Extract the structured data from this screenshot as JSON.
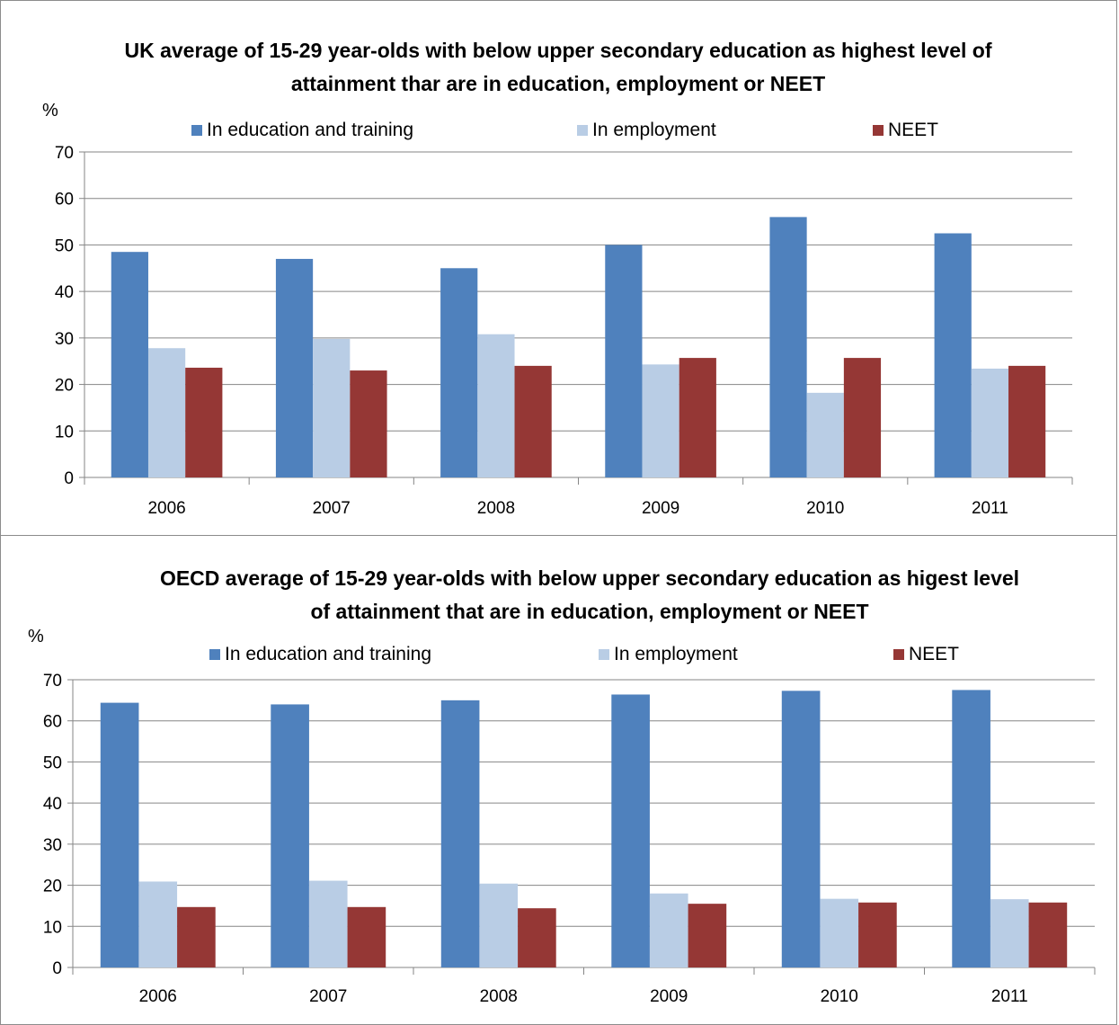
{
  "colors": {
    "education": "#4f81bd",
    "employment": "#b9cde5",
    "neet": "#953735",
    "grid": "#868686"
  },
  "chart_data": [
    {
      "type": "bar",
      "title_lines": [
        "UK average of 15-29 year-olds with below upper secondary education as highest level of",
        "attainment thar are in education, employment or NEET"
      ],
      "ylabel": "%",
      "xlabel": "",
      "ylim": [
        0,
        70
      ],
      "yticks": [
        0,
        10,
        20,
        30,
        40,
        50,
        60,
        70
      ],
      "grid": true,
      "legend_position": "top",
      "categories": [
        "2006",
        "2007",
        "2008",
        "2009",
        "2010",
        "2011"
      ],
      "series": [
        {
          "name": "In education and training",
          "color_key": "education",
          "values": [
            48.5,
            47,
            45,
            50,
            56,
            52.5
          ]
        },
        {
          "name": "In employment",
          "color_key": "employment",
          "values": [
            27.8,
            29.8,
            30.8,
            24.3,
            18.2,
            23.4
          ]
        },
        {
          "name": "NEET",
          "color_key": "neet",
          "values": [
            23.6,
            23,
            24,
            25.7,
            25.7,
            24
          ]
        }
      ]
    },
    {
      "type": "bar",
      "title_lines": [
        "OECD average of 15-29 year-olds with below upper secondary education as higest level",
        "of attainment that are in education, employment or NEET"
      ],
      "ylabel": "%",
      "xlabel": "",
      "ylim": [
        0,
        70
      ],
      "yticks": [
        0,
        10,
        20,
        30,
        40,
        50,
        60,
        70
      ],
      "grid": true,
      "legend_position": "top",
      "categories": [
        "2006",
        "2007",
        "2008",
        "2009",
        "2010",
        "2011"
      ],
      "series": [
        {
          "name": "In education and training",
          "color_key": "education",
          "values": [
            64.4,
            64,
            65,
            66.4,
            67.3,
            67.5
          ]
        },
        {
          "name": "In employment",
          "color_key": "employment",
          "values": [
            20.9,
            21.1,
            20.4,
            18,
            16.7,
            16.6
          ]
        },
        {
          "name": "NEET",
          "color_key": "neet",
          "values": [
            14.7,
            14.7,
            14.4,
            15.5,
            15.8,
            15.8
          ]
        }
      ]
    }
  ]
}
